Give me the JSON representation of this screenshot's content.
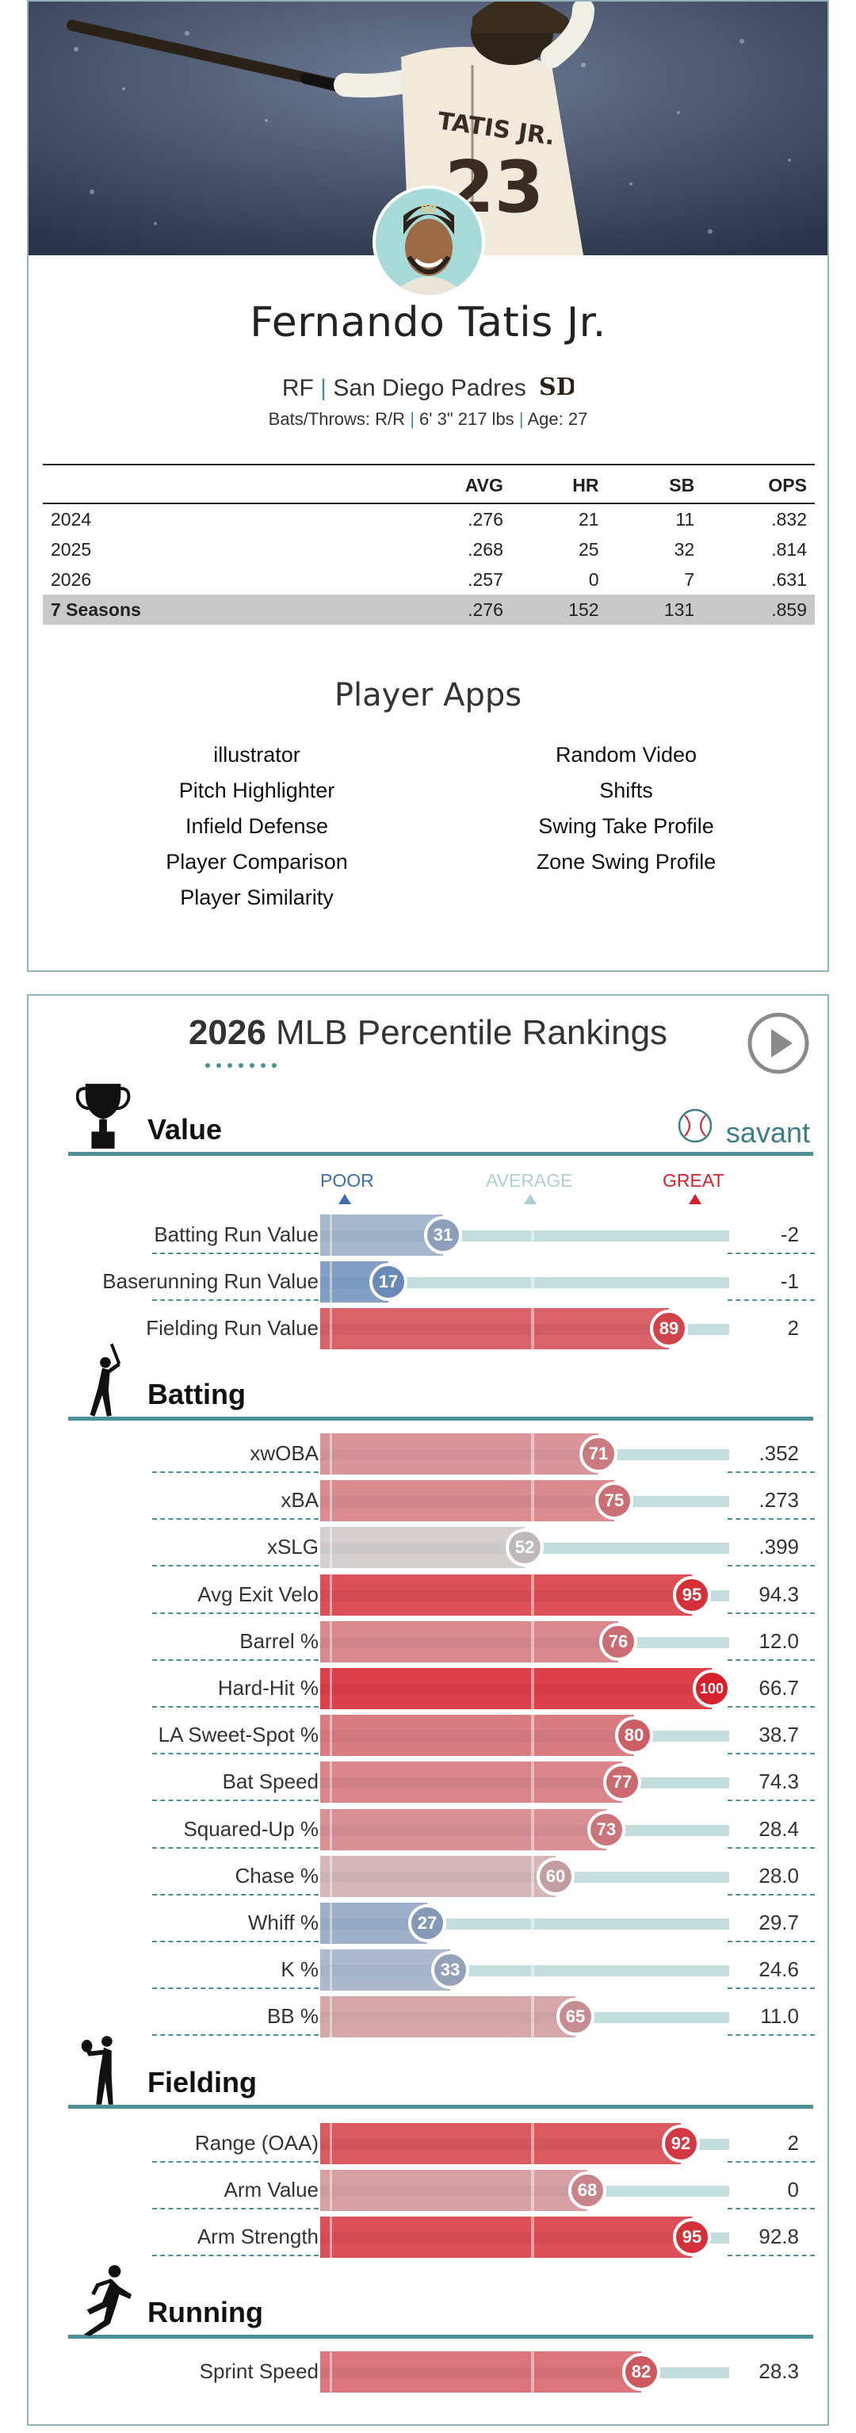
{
  "player": {
    "name": "Fernando Tatis Jr.",
    "position": "RF",
    "team": "San Diego Padres",
    "team_logo_text": "SD",
    "bats_throws_label": "Bats/Throws:",
    "bats_throws": "R/R",
    "height_weight": "6' 3\" 217 lbs",
    "age_label": "Age:",
    "age": "27",
    "jersey_name": "TATIS JR.",
    "jersey_number": "23"
  },
  "stats_table": {
    "headers": [
      "",
      "AVG",
      "HR",
      "SB",
      "OPS"
    ],
    "rows": [
      [
        "2024",
        ".276",
        "21",
        "11",
        ".832"
      ],
      [
        "2025",
        ".268",
        "25",
        "32",
        ".814"
      ],
      [
        "2026",
        ".257",
        "0",
        "7",
        ".631"
      ]
    ],
    "total": [
      "7 Seasons",
      ".276",
      "152",
      "131",
      ".859"
    ]
  },
  "player_apps": {
    "title": "Player Apps",
    "left": [
      "illustrator",
      "Pitch Highlighter",
      "Infield Defense",
      "Player Comparison",
      "Player Similarity"
    ],
    "right": [
      "Random Video",
      "Shifts",
      "Swing Take Profile",
      "Zone Swing Profile"
    ]
  },
  "percentile": {
    "year": "2026",
    "title_rest": "MLB Percentile Rankings",
    "brand": "savant",
    "scale": {
      "poor": "POOR",
      "average": "AVERAGE",
      "great": "GREAT"
    },
    "sections": [
      {
        "label": "Value",
        "icon": "trophy-icon",
        "metrics": [
          {
            "label": "Batting Run Value",
            "pct": 31,
            "value": "-2"
          },
          {
            "label": "Baserunning Run Value",
            "pct": 17,
            "value": "-1"
          },
          {
            "label": "Fielding Run Value",
            "pct": 89,
            "value": "2"
          }
        ]
      },
      {
        "label": "Batting",
        "icon": "batter-icon",
        "metrics": [
          {
            "label": "xwOBA",
            "pct": 71,
            "value": ".352"
          },
          {
            "label": "xBA",
            "pct": 75,
            "value": ".273"
          },
          {
            "label": "xSLG",
            "pct": 52,
            "value": ".399"
          },
          {
            "label": "Avg Exit Velo",
            "pct": 95,
            "value": "94.3"
          },
          {
            "label": "Barrel %",
            "pct": 76,
            "value": "12.0"
          },
          {
            "label": "Hard-Hit %",
            "pct": 100,
            "value": "66.7"
          },
          {
            "label": "LA Sweet-Spot %",
            "pct": 80,
            "value": "38.7"
          },
          {
            "label": "Bat Speed",
            "pct": 77,
            "value": "74.3"
          },
          {
            "label": "Squared-Up %",
            "pct": 73,
            "value": "28.4"
          },
          {
            "label": "Chase %",
            "pct": 60,
            "value": "28.0"
          },
          {
            "label": "Whiff %",
            "pct": 27,
            "value": "29.7"
          },
          {
            "label": "K %",
            "pct": 33,
            "value": "24.6"
          },
          {
            "label": "BB %",
            "pct": 65,
            "value": "11.0"
          }
        ]
      },
      {
        "label": "Fielding",
        "icon": "fielder-icon",
        "metrics": [
          {
            "label": "Range (OAA)",
            "pct": 92,
            "value": "2"
          },
          {
            "label": "Arm Value",
            "pct": 68,
            "value": "0"
          },
          {
            "label": "Arm Strength",
            "pct": 95,
            "value": "92.8"
          }
        ]
      },
      {
        "label": "Running",
        "icon": "runner-icon",
        "metrics": [
          {
            "label": "Sprint Speed",
            "pct": 82,
            "value": "28.3"
          }
        ]
      }
    ]
  },
  "colors": {
    "accent": "#4d8f96",
    "track": "#c4dede",
    "total_row": "#c9c9c9",
    "poor": "#3f6db0",
    "average": "#b0cfd2",
    "great": "#d6202b"
  }
}
